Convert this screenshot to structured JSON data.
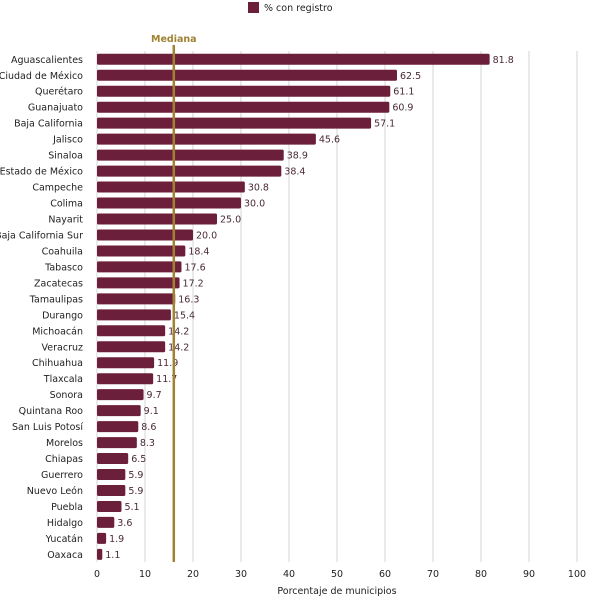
{
  "chart_data": {
    "type": "bar",
    "orientation": "horizontal",
    "categories": [
      "Aguascalientes",
      "Ciudad de México",
      "Querétaro",
      "Guanajuato",
      "Baja California",
      "Jalisco",
      "Sinaloa",
      "Estado de México",
      "Campeche",
      "Colima",
      "Nayarit",
      "Baja California Sur",
      "Coahuila",
      "Tabasco",
      "Zacatecas",
      "Tamaulipas",
      "Durango",
      "Michoacán",
      "Veracruz",
      "Chihuahua",
      "Tlaxcala",
      "Sonora",
      "Quintana Roo",
      "San Luis Potosí",
      "Morelos",
      "Chiapas",
      "Guerrero",
      "Nuevo León",
      "Puebla",
      "Hidalgo",
      "Yucatán",
      "Oaxaca"
    ],
    "series": [
      {
        "name": "% con registro",
        "values": [
          81.8,
          62.5,
          61.1,
          60.9,
          57.1,
          45.6,
          38.9,
          38.4,
          30.8,
          30.0,
          25.0,
          20.0,
          18.4,
          17.6,
          17.2,
          16.3,
          15.4,
          14.2,
          14.2,
          11.9,
          11.7,
          9.7,
          9.1,
          8.6,
          8.3,
          6.5,
          5.9,
          5.9,
          5.1,
          3.6,
          1.9,
          1.1
        ],
        "value_labels": [
          "81.8",
          "62.5",
          "61.1",
          "60.9",
          "57.1",
          "45.6",
          "38.9",
          "38.4",
          "30.8",
          "30.0",
          "25.0",
          "20.0",
          "18.4",
          "17.6",
          "17.2",
          "16.3",
          "15.4",
          "14.2",
          "14.2",
          "11.9",
          "11.7",
          "9.7",
          "9.1",
          "8.6",
          "8.3",
          "6.5",
          "5.9",
          "5.9",
          "5.1",
          "3.6",
          "1.9",
          "1.1"
        ]
      }
    ],
    "xlabel": "Porcentaje de municipios",
    "xlim": [
      0,
      100
    ],
    "xticks": [
      0,
      10,
      20,
      30,
      40,
      50,
      60,
      70,
      80,
      90,
      100
    ],
    "xtick_labels": [
      "0",
      "10",
      "20",
      "30",
      "40",
      "50",
      "60",
      "70",
      "80",
      "90",
      "100"
    ],
    "grid": "vertical",
    "legend": "top-center",
    "reference_line": {
      "label": "Mediana",
      "value": 16
    },
    "colors": {
      "bar": "#6b1f3a",
      "median": "#a08232",
      "grid": "#d6d6d6"
    }
  }
}
